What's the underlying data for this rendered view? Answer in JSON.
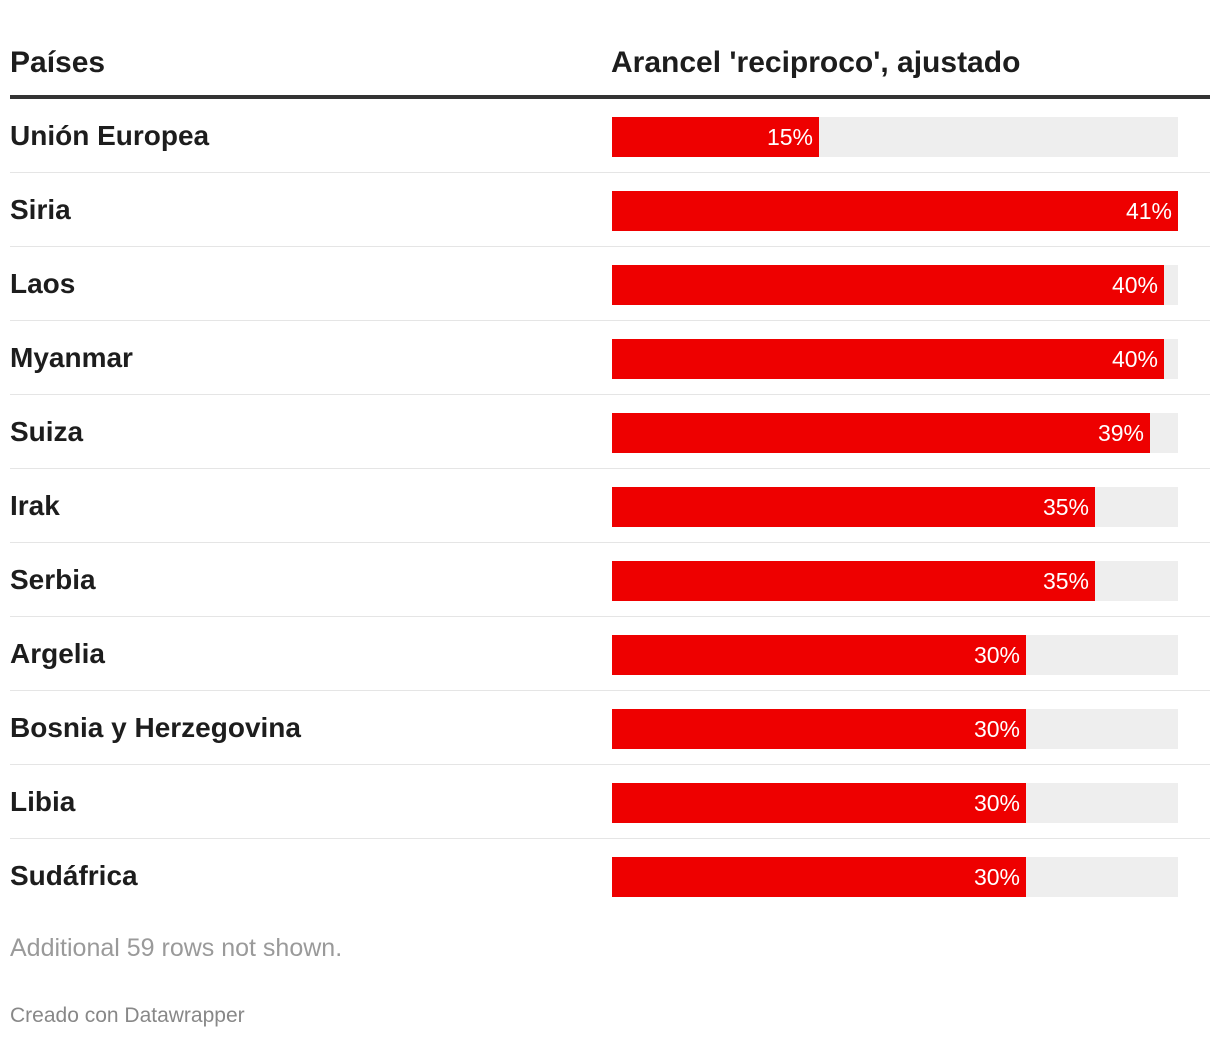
{
  "table": {
    "headers": {
      "country": "Países",
      "tariff": "Arancel 'reciproco', ajustado"
    },
    "footer_note": "Additional 59 rows not shown.",
    "credit": "Creado con Datawrapper"
  },
  "colors": {
    "bar": "#ee0000",
    "track": "#eeeeee",
    "text": "#1d1d1d"
  },
  "chart_data": {
    "type": "table",
    "title": "",
    "columns": [
      "Países",
      "Arancel 'reciproco', ajustado"
    ],
    "value_unit": "%",
    "xlim": [
      0,
      41
    ],
    "rows": [
      {
        "country": "Unión Europea",
        "value": 15,
        "label": "15%"
      },
      {
        "country": "Siria",
        "value": 41,
        "label": "41%"
      },
      {
        "country": "Laos",
        "value": 40,
        "label": "40%"
      },
      {
        "country": "Myanmar",
        "value": 40,
        "label": "40%"
      },
      {
        "country": "Suiza",
        "value": 39,
        "label": "39%"
      },
      {
        "country": "Irak",
        "value": 35,
        "label": "35%"
      },
      {
        "country": "Serbia",
        "value": 35,
        "label": "35%"
      },
      {
        "country": "Argelia",
        "value": 30,
        "label": "30%"
      },
      {
        "country": "Bosnia y Herzegovina",
        "value": 30,
        "label": "30%"
      },
      {
        "country": "Libia",
        "value": 30,
        "label": "30%"
      },
      {
        "country": "Sudáfrica",
        "value": 30,
        "label": "30%"
      }
    ]
  }
}
